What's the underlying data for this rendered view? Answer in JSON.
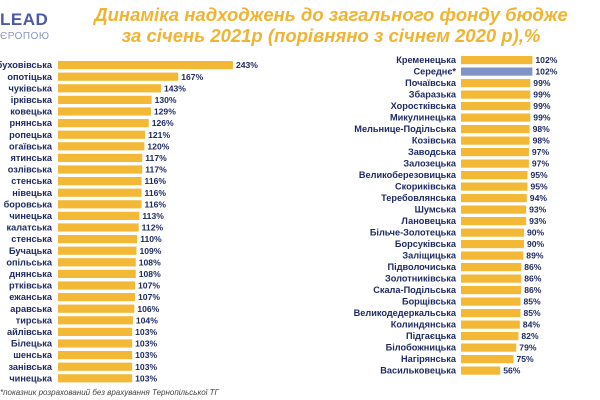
{
  "logo": {
    "main": "LEAD",
    "sub": "ЄРОПОЮ"
  },
  "title": {
    "line1": "Динаміка надходжень до загального фонду бюдже",
    "line2": "за січень 2021р (порівняно з січнем 2020 р),%"
  },
  "footnote": "*показник розрахований без врахування Тернопільської ТГ",
  "colors": {
    "bar": "#f2b836",
    "highlight": "#7f93c6",
    "title": "#f0b432"
  },
  "chart_data": [
    {
      "type": "bar",
      "orientation": "horizontal",
      "unit": "%",
      "categories": [
        "буховівська",
        "опотіцька",
        "чуківська",
        "ірківська",
        "ковецька",
        "рнянська",
        "ропецька",
        "огаївська",
        "ятинська",
        "озлівська",
        "стенська",
        "нівецька",
        "боровська",
        "чинецька",
        "калатська",
        "стенська",
        "Бучацька",
        "опільська",
        "днянська",
        "ртківська",
        "ежанська",
        "аравська",
        "тирська",
        "айлівська",
        "Білецька",
        "шенська",
        "занівська",
        "чинецька"
      ],
      "values": [
        243,
        167,
        143,
        130,
        129,
        126,
        121,
        120,
        117,
        117,
        116,
        116,
        116,
        113,
        112,
        110,
        109,
        108,
        108,
        107,
        107,
        106,
        104,
        103,
        103,
        103,
        103,
        103
      ],
      "labels": [
        "243%",
        "167%",
        "143%",
        "130%",
        "129%",
        "126%",
        "121%",
        "120%",
        "117%",
        "117%",
        "116%",
        "116%",
        "116%",
        "113%",
        "112%",
        "110%",
        "109%",
        "108%",
        "108%",
        "107%",
        "107%",
        "106%",
        "104%",
        "103%",
        "103%",
        "103%",
        "103%",
        "103%"
      ]
    },
    {
      "type": "bar",
      "orientation": "horizontal",
      "unit": "%",
      "categories": [
        "Кременецька",
        "Середнє*",
        "Почаївська",
        "Збаразька",
        "Хоростківська",
        "Микулинецька",
        "Мельнице-Подільська",
        "Козівська",
        "Заводська",
        "Залозецька",
        "Великоберезовицька",
        "Скориківська",
        "Теребовлянська",
        "Шумська",
        "Лановецька",
        "Більче-Золотецька",
        "Борсуківська",
        "Заліщицька",
        "Підволочиська",
        "Золотниківська",
        "Скала-Подільська",
        "Борщівська",
        "Великодедеркальська",
        "Колиндянська",
        "Підгаєцька",
        "Білобожницька",
        "Нагірянська",
        "Васильковецька"
      ],
      "values": [
        102,
        102,
        99,
        99,
        99,
        99,
        98,
        98,
        97,
        97,
        95,
        95,
        94,
        93,
        93,
        90,
        90,
        89,
        86,
        86,
        86,
        85,
        85,
        84,
        82,
        79,
        75,
        56
      ],
      "labels": [
        "102%",
        "102%",
        "99%",
        "99%",
        "99%",
        "99%",
        "98%",
        "98%",
        "97%",
        "97%",
        "95%",
        "95%",
        "94%",
        "93%",
        "93%",
        "90%",
        "90%",
        "89%",
        "86%",
        "86%",
        "86%",
        "85%",
        "85%",
        "84%",
        "82%",
        "79%",
        "75%",
        "56%"
      ],
      "highlight_category": "Середнє*"
    }
  ]
}
